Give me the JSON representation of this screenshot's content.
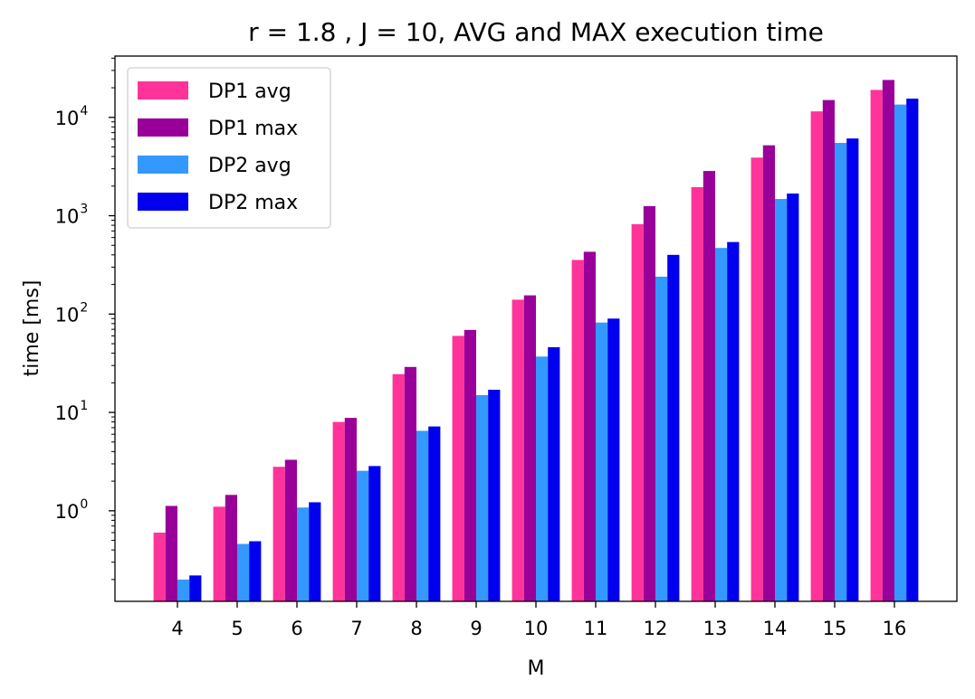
{
  "chart_data": {
    "type": "bar",
    "title": "r = 1.8 , J = 10, AVG and MAX execution time",
    "xlabel": "M",
    "ylabel": "time [ms]",
    "yscale": "log",
    "ylim": [
      0.12,
      42000
    ],
    "grid": false,
    "legend_position": "top-left",
    "categories": [
      "4",
      "5",
      "6",
      "7",
      "8",
      "9",
      "10",
      "11",
      "12",
      "13",
      "14",
      "15",
      "16"
    ],
    "y_ticks": [
      {
        "value": 1,
        "base": "10",
        "exp": "0"
      },
      {
        "value": 10,
        "base": "10",
        "exp": "1"
      },
      {
        "value": 100,
        "base": "10",
        "exp": "2"
      },
      {
        "value": 1000,
        "base": "10",
        "exp": "3"
      },
      {
        "value": 10000,
        "base": "10",
        "exp": "4"
      }
    ],
    "series": [
      {
        "name": "DP1 avg",
        "color": "#ff3399",
        "values": [
          0.6,
          1.1,
          2.8,
          8.0,
          24.5,
          60,
          140,
          355,
          820,
          1950,
          3900,
          11500,
          19000
        ]
      },
      {
        "name": "DP1 max",
        "color": "#990099",
        "values": [
          1.12,
          1.45,
          3.3,
          8.8,
          29,
          69,
          155,
          430,
          1250,
          2850,
          5200,
          15000,
          24000
        ]
      },
      {
        "name": "DP2 avg",
        "color": "#3399ff",
        "values": [
          0.2,
          0.46,
          1.08,
          2.55,
          6.5,
          15,
          37,
          82,
          240,
          470,
          1480,
          5500,
          13500
        ]
      },
      {
        "name": "DP2 max",
        "color": "#0000ee",
        "values": [
          0.22,
          0.49,
          1.22,
          2.85,
          7.2,
          17,
          46,
          90,
          400,
          540,
          1680,
          6100,
          15500
        ]
      }
    ]
  }
}
